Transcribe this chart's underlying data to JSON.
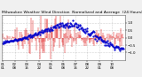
{
  "title": "Milwaukee Weather Wind Direction  Normalized and Average  (24 Hours) (Old)",
  "bg_color": "#f0f0f0",
  "plot_bg_color": "#ffffff",
  "grid_color": "#aaaaaa",
  "bar_color": "#dd0000",
  "line_color": "#0000cc",
  "ylim": [
    -1.5,
    1.5
  ],
  "yticks": [
    -1.0,
    -0.5,
    0.0,
    0.5,
    1.0
  ],
  "num_points": 200,
  "title_fontsize": 3.2,
  "tick_fontsize": 2.8
}
